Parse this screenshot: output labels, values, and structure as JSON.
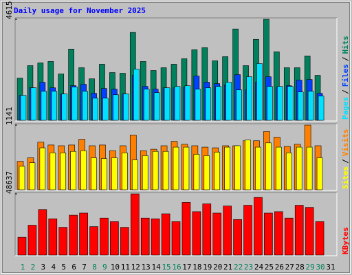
{
  "chart_data": [
    {
      "type": "bar",
      "title": "Daily usage for November 2025",
      "categories": [
        "1",
        "2",
        "3",
        "4",
        "5",
        "6",
        "7",
        "8",
        "9",
        "10",
        "11",
        "12",
        "13",
        "14",
        "15",
        "16",
        "17",
        "18",
        "19",
        "20",
        "21",
        "22",
        "23",
        "24",
        "25",
        "26",
        "27",
        "28",
        "29",
        "30",
        "31"
      ],
      "category_colors": [
        "#00805c",
        "#00805c",
        "#000000",
        "#000000",
        "#000000",
        "#000000",
        "#000000",
        "#00805c",
        "#00805c",
        "#000000",
        "#000000",
        "#000000",
        "#000000",
        "#000000",
        "#00805c",
        "#00805c",
        "#000000",
        "#000000",
        "#000000",
        "#000000",
        "#000000",
        "#00805c",
        "#00805c",
        "#000000",
        "#000000",
        "#000000",
        "#000000",
        "#000000",
        "#00805c",
        "#00805c",
        "#000000"
      ],
      "legend_separator": "/",
      "ylim": [
        0,
        4615
      ],
      "yticks": [
        4615
      ],
      "series": [
        {
          "name": "Hits",
          "color": "#00805c",
          "values": [
            1928,
            2497,
            2623,
            2686,
            2117,
            3255,
            2402,
            1896,
            2560,
            2180,
            2149,
            4013,
            2686,
            2275,
            2402,
            2560,
            2812,
            3223,
            3318,
            2718,
            2907,
            4171,
            2497,
            3697,
            4615,
            3128,
            2402,
            2402,
            2939,
            2054,
            null
          ]
        },
        {
          "name": "Files",
          "color": "#0040ff",
          "values": [
            1138,
            1485,
            1738,
            1485,
            1201,
            1580,
            1643,
            1232,
            1454,
            1422,
            1201,
            2054,
            1548,
            1422,
            1485,
            1485,
            1517,
            2022,
            1738,
            1675,
            1612,
            2086,
            1390,
            1738,
            1991,
            1517,
            1580,
            1833,
            1864,
            1232,
            null
          ]
        },
        {
          "name": "Pages",
          "color": "#00e0ff",
          "values": [
            1138,
            1485,
            1327,
            1327,
            1201,
            1517,
            1327,
            1011,
            1011,
            1169,
            1201,
            2338,
            1422,
            1264,
            1485,
            1548,
            1580,
            1422,
            1485,
            1548,
            1738,
            1390,
            1991,
            2591,
            1548,
            1548,
            1548,
            1296,
            1327,
            1106,
            null
          ]
        }
      ]
    },
    {
      "type": "bar",
      "legend_separator": "/",
      "ylim": [
        0,
        1141
      ],
      "yticks": [
        1141
      ],
      "series": [
        {
          "name": "Visits",
          "color": "#ff8000",
          "values": [
            502,
            564,
            840,
            790,
            777,
            790,
            890,
            777,
            790,
            690,
            777,
            966,
            690,
            715,
            777,
            853,
            803,
            777,
            752,
            740,
            777,
            777,
            865,
            865,
            1028,
            928,
            765,
            803,
            1141,
            777,
            null
          ]
        },
        {
          "name": "Sites",
          "color": "#ffff00",
          "values": [
            414,
            477,
            740,
            652,
            652,
            677,
            690,
            564,
            552,
            564,
            652,
            527,
            602,
            677,
            677,
            752,
            752,
            627,
            602,
            665,
            752,
            777,
            878,
            752,
            828,
            752,
            652,
            752,
            752,
            564,
            null
          ]
        }
      ]
    },
    {
      "type": "bar",
      "ylim": [
        0,
        48637
      ],
      "yticks": [
        48637
      ],
      "series": [
        {
          "name": "KBytes",
          "color": "#ff0000",
          "values": [
            14138,
            23751,
            36192,
            28841,
            22055,
            31668,
            33365,
            22620,
            29406,
            26579,
            22055,
            48637,
            29406,
            28841,
            32799,
            26579,
            41847,
            34496,
            40716,
            33365,
            39020,
            28275,
            39586,
            45806,
            33365,
            34496,
            29406,
            39586,
            37889,
            26579,
            null
          ]
        }
      ]
    }
  ]
}
